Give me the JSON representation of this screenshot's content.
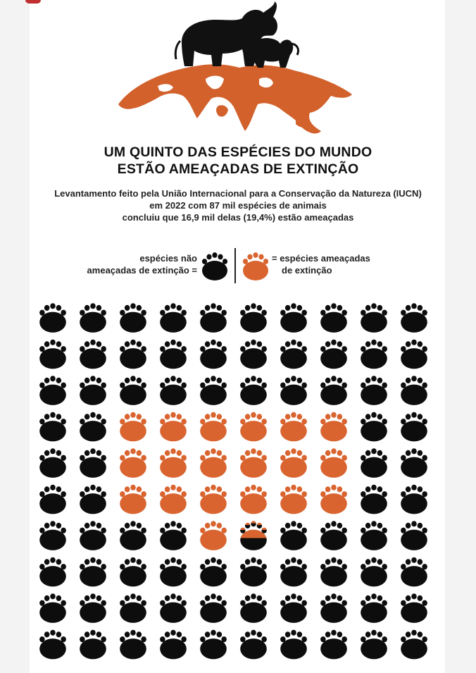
{
  "title": {
    "line1": "UM QUINTO DAS ESPÉCIES DO MUNDO",
    "line2": "ESTÃO AMEAÇADAS DE EXTINÇÃO"
  },
  "subtitle": {
    "line1": "Levantamento feito pela União Internacional para a Conservação da Natureza (IUCN)",
    "line2": "em 2022 com 87 mil espécies de animais",
    "line3": "concluiu que 16,9 mil delas (19,4%) estão ameaçadas"
  },
  "legend": {
    "not_threatened_line1": "espécies não",
    "not_threatened_line2": "ameaçadas de extinção =",
    "threatened_line1": "= espécies ameaçadas",
    "threatened_line2": "de extinção"
  },
  "colors": {
    "not_threatened": "#0d0d0d",
    "threatened": "#d9642f",
    "map": "#d2612c",
    "elephant": "#111111"
  },
  "icons": {
    "paw": "paw-icon",
    "hero": "elephant-on-globe-icon"
  },
  "grid": {
    "rows": 10,
    "cols": 10,
    "threatened_fraction": 0.194,
    "cells": [
      [
        0,
        0,
        0,
        0,
        0,
        0,
        0,
        0,
        0,
        0
      ],
      [
        0,
        0,
        0,
        0,
        0,
        0,
        0,
        0,
        0,
        0
      ],
      [
        0,
        0,
        0,
        0,
        0,
        0,
        0,
        0,
        0,
        0
      ],
      [
        0,
        0,
        1,
        1,
        1,
        1,
        1,
        1,
        0,
        0
      ],
      [
        0,
        0,
        1,
        1,
        1,
        1,
        1,
        1,
        0,
        0
      ],
      [
        0,
        0,
        1,
        1,
        1,
        1,
        1,
        1,
        0,
        0
      ],
      [
        0,
        0,
        0,
        0,
        1,
        0.4,
        0,
        0,
        0,
        0
      ],
      [
        0,
        0,
        0,
        0,
        0,
        0,
        0,
        0,
        0,
        0
      ],
      [
        0,
        0,
        0,
        0,
        0,
        0,
        0,
        0,
        0,
        0
      ],
      [
        0,
        0,
        0,
        0,
        0,
        0,
        0,
        0,
        0,
        0
      ]
    ]
  }
}
